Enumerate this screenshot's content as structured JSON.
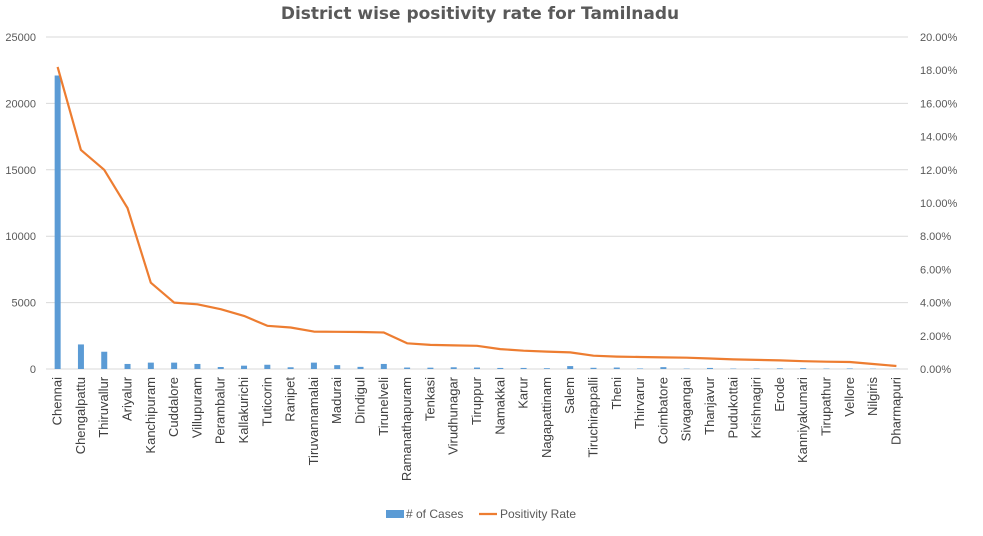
{
  "chart_data": {
    "type": "bar",
    "title": "District wise positivity rate for Tamilnadu",
    "xlabel": "",
    "ylabel": "",
    "y2label": "",
    "ylim": [
      0,
      25000
    ],
    "y2lim": [
      0,
      20
    ],
    "y_ticks": [
      "0",
      "5000",
      "10000",
      "15000",
      "20000",
      "25000"
    ],
    "y2_ticks": [
      "0.00%",
      "2.00%",
      "4.00%",
      "6.00%",
      "8.00%",
      "10.00%",
      "12.00%",
      "14.00%",
      "16.00%",
      "18.00%",
      "20.00%"
    ],
    "grid": true,
    "legend_position": "bottom",
    "categories": [
      "Chennai",
      "Chengalpattu",
      "Thiruvallur",
      "Ariyalur",
      "Kanchipuram",
      "Cuddalore",
      "Villupuram",
      "Perambalur",
      "Kallakurichi",
      "Tuticorin",
      "Ranipet",
      "Tiruvannamalai",
      "Madurai",
      "Dindigul",
      "Tirunelveli",
      "Ramanathapuram",
      "Tenkasi",
      "Virudhunagar",
      "Tiruppur",
      "Namakkal",
      "Karur",
      "Nagapattinam",
      "Salem",
      "Tiruchirappalli",
      "Theni",
      "Thirvarur",
      "Coimbatore",
      "Sivagangai",
      "Thanjavur",
      "Pudukottai",
      "Krishnagiri",
      "Erode",
      "Kanniyakumari",
      "Tirupathur",
      "Vellore",
      "Nilgiris",
      "Dharmapuri"
    ],
    "series": [
      {
        "name": "# of Cases",
        "type": "bar",
        "axis": "left",
        "color": "#5b9bd5",
        "values": [
          22100,
          1850,
          1300,
          380,
          480,
          480,
          380,
          150,
          250,
          320,
          130,
          480,
          290,
          160,
          380,
          110,
          100,
          130,
          110,
          80,
          80,
          60,
          220,
          90,
          110,
          40,
          140,
          30,
          80,
          30,
          30,
          50,
          60,
          30,
          40,
          20,
          10
        ]
      },
      {
        "name": "Positivity Rate",
        "type": "line",
        "axis": "right",
        "unit": "%",
        "color": "#ed7d31",
        "values": [
          18.2,
          13.2,
          12.0,
          9.7,
          5.2,
          4.0,
          3.9,
          3.6,
          3.2,
          2.6,
          2.5,
          2.25,
          2.24,
          2.23,
          2.2,
          1.55,
          1.45,
          1.42,
          1.4,
          1.2,
          1.1,
          1.05,
          1.0,
          0.8,
          0.75,
          0.72,
          0.7,
          0.68,
          0.63,
          0.58,
          0.55,
          0.52,
          0.47,
          0.44,
          0.42,
          0.3,
          0.18
        ]
      }
    ]
  }
}
